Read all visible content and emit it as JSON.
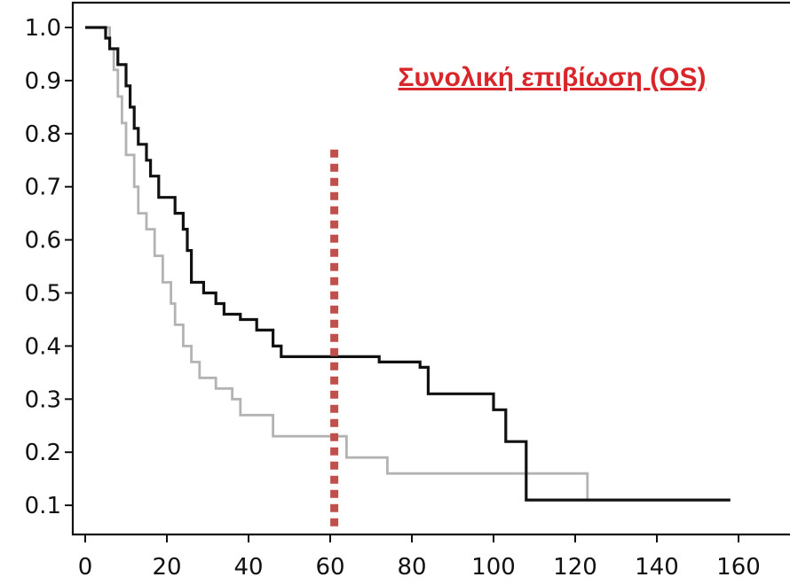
{
  "chart_data": {
    "type": "line",
    "title": "Συνολική επιβίωση (OS)",
    "xlabel": "",
    "ylabel": "",
    "xlim": [
      0,
      160
    ],
    "ylim": [
      0.05,
      1.02
    ],
    "x_ticks": [
      0,
      20,
      40,
      60,
      80,
      100,
      120,
      140,
      160
    ],
    "x_tick_labels": [
      "0",
      "20",
      "40",
      "60",
      "80",
      "100",
      "120",
      "140",
      "160"
    ],
    "y_ticks": [
      0.1,
      0.2,
      0.3,
      0.4,
      0.5,
      0.6,
      0.7,
      0.8,
      0.9,
      1.0
    ],
    "y_tick_labels": [
      "0.1",
      "0.2",
      "0.3",
      "0.4",
      "0.5",
      "0.6",
      "0.7",
      "0.8",
      "0.9",
      "1.0"
    ],
    "grid": false,
    "legend": "none",
    "reference_line": {
      "x": 61,
      "y_from": 0.05,
      "y_to": 0.77,
      "style": "dotted",
      "color": "#c0504d"
    },
    "series": [
      {
        "style": "step",
        "color": "#111111",
        "points": [
          [
            0,
            1.0
          ],
          [
            5,
            1.0
          ],
          [
            5,
            0.98
          ],
          [
            6,
            0.98
          ],
          [
            6,
            0.96
          ],
          [
            8,
            0.96
          ],
          [
            8,
            0.93
          ],
          [
            10,
            0.93
          ],
          [
            10,
            0.89
          ],
          [
            11,
            0.89
          ],
          [
            11,
            0.85
          ],
          [
            12,
            0.85
          ],
          [
            12,
            0.81
          ],
          [
            13,
            0.81
          ],
          [
            13,
            0.78
          ],
          [
            15,
            0.78
          ],
          [
            15,
            0.75
          ],
          [
            16,
            0.75
          ],
          [
            16,
            0.72
          ],
          [
            18,
            0.72
          ],
          [
            18,
            0.68
          ],
          [
            22,
            0.68
          ],
          [
            22,
            0.65
          ],
          [
            24,
            0.65
          ],
          [
            24,
            0.62
          ],
          [
            25,
            0.62
          ],
          [
            25,
            0.58
          ],
          [
            26,
            0.58
          ],
          [
            26,
            0.52
          ],
          [
            29,
            0.52
          ],
          [
            29,
            0.5
          ],
          [
            32,
            0.5
          ],
          [
            32,
            0.48
          ],
          [
            34,
            0.48
          ],
          [
            34,
            0.46
          ],
          [
            38,
            0.46
          ],
          [
            38,
            0.45
          ],
          [
            42,
            0.45
          ],
          [
            42,
            0.43
          ],
          [
            46,
            0.43
          ],
          [
            46,
            0.4
          ],
          [
            48,
            0.4
          ],
          [
            48,
            0.38
          ],
          [
            72,
            0.38
          ],
          [
            72,
            0.37
          ],
          [
            82,
            0.37
          ],
          [
            82,
            0.36
          ],
          [
            84,
            0.36
          ],
          [
            84,
            0.31
          ],
          [
            100,
            0.31
          ],
          [
            100,
            0.28
          ],
          [
            103,
            0.28
          ],
          [
            103,
            0.22
          ],
          [
            108,
            0.22
          ],
          [
            108,
            0.11
          ],
          [
            158,
            0.11
          ]
        ]
      },
      {
        "style": "step",
        "color": "#b3b3b3",
        "points": [
          [
            0,
            1.0
          ],
          [
            6,
            1.0
          ],
          [
            6,
            0.96
          ],
          [
            7,
            0.96
          ],
          [
            7,
            0.92
          ],
          [
            8,
            0.92
          ],
          [
            8,
            0.87
          ],
          [
            9,
            0.87
          ],
          [
            9,
            0.82
          ],
          [
            10,
            0.82
          ],
          [
            10,
            0.76
          ],
          [
            12,
            0.76
          ],
          [
            12,
            0.7
          ],
          [
            13,
            0.7
          ],
          [
            13,
            0.65
          ],
          [
            15,
            0.65
          ],
          [
            15,
            0.62
          ],
          [
            17,
            0.62
          ],
          [
            17,
            0.57
          ],
          [
            19,
            0.57
          ],
          [
            19,
            0.52
          ],
          [
            21,
            0.52
          ],
          [
            21,
            0.48
          ],
          [
            22,
            0.48
          ],
          [
            22,
            0.44
          ],
          [
            24,
            0.44
          ],
          [
            24,
            0.4
          ],
          [
            26,
            0.4
          ],
          [
            26,
            0.37
          ],
          [
            28,
            0.37
          ],
          [
            28,
            0.34
          ],
          [
            32,
            0.34
          ],
          [
            32,
            0.32
          ],
          [
            36,
            0.32
          ],
          [
            36,
            0.3
          ],
          [
            38,
            0.3
          ],
          [
            38,
            0.27
          ],
          [
            46,
            0.27
          ],
          [
            46,
            0.23
          ],
          [
            64,
            0.23
          ],
          [
            64,
            0.19
          ],
          [
            74,
            0.19
          ],
          [
            74,
            0.16
          ],
          [
            123,
            0.16
          ],
          [
            123,
            0.11
          ],
          [
            157,
            0.11
          ]
        ]
      }
    ]
  }
}
